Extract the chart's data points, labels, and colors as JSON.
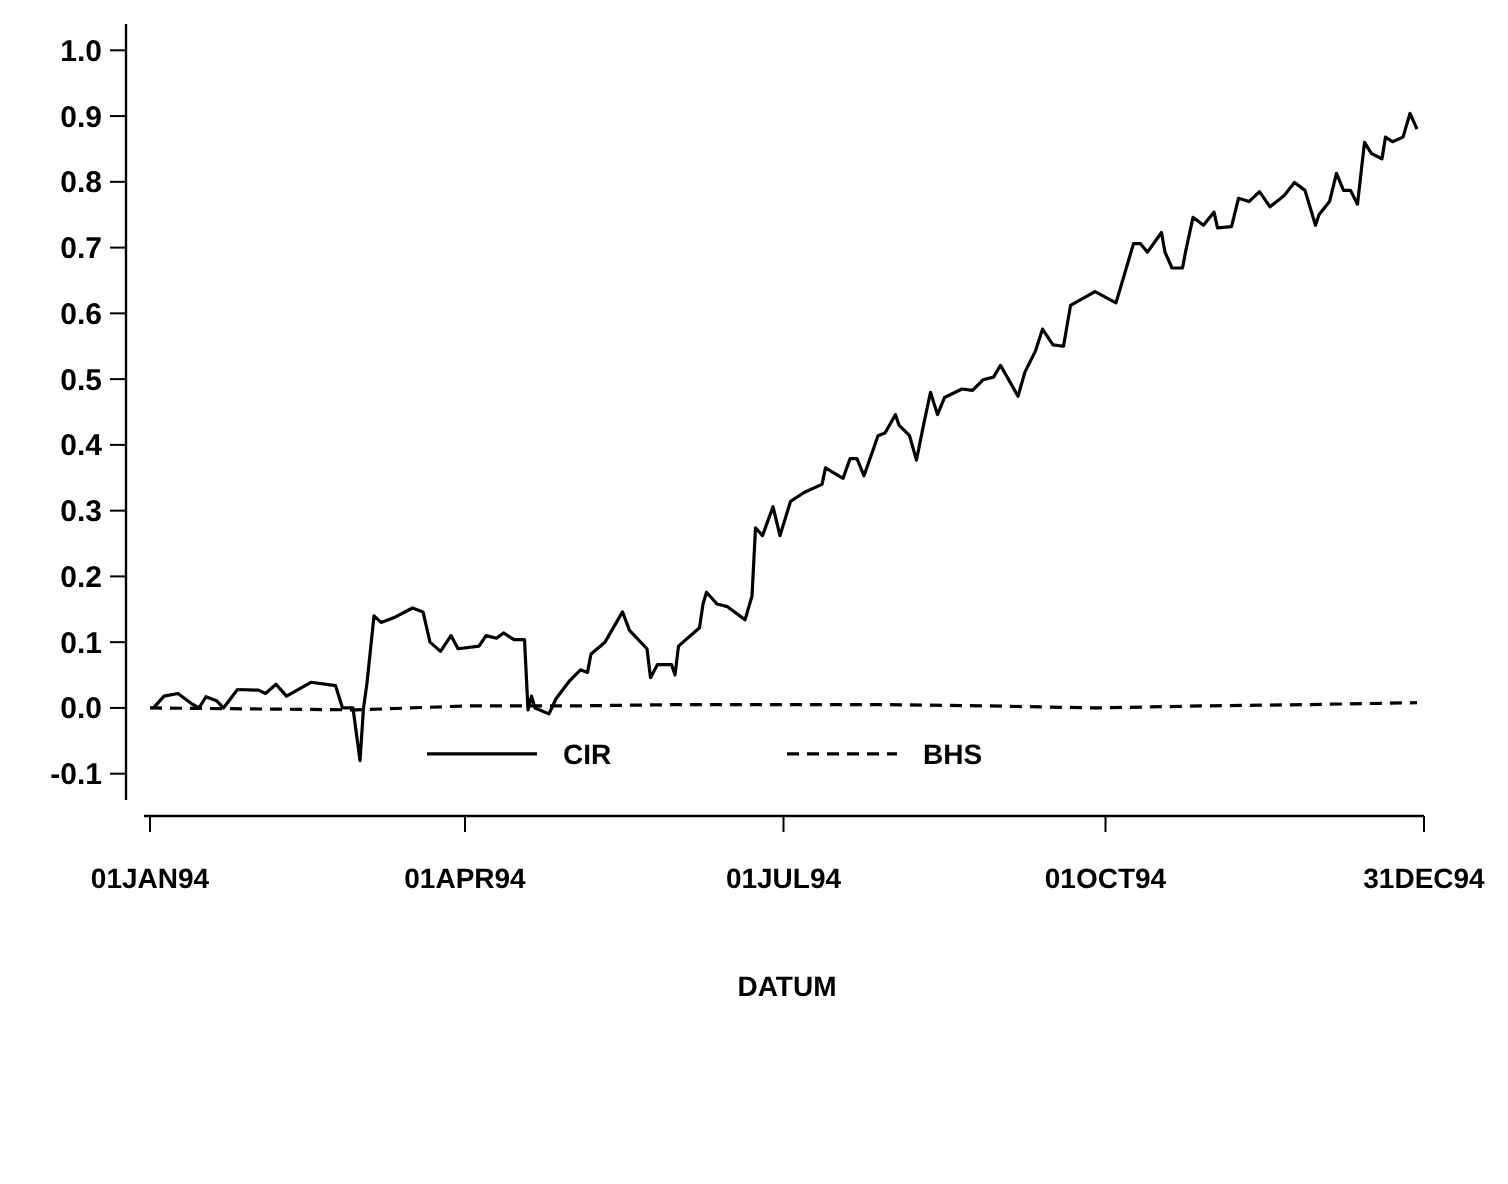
{
  "chart_data": {
    "type": "line",
    "xlabel": "DATUM",
    "xlim": [
      "1994-01-01",
      "1994-12-31"
    ],
    "xticks": [
      {
        "value": "1994-01-01",
        "label": "01JAN94"
      },
      {
        "value": "1994-04-01",
        "label": "01APR94"
      },
      {
        "value": "1994-07-01",
        "label": "01JUL94"
      },
      {
        "value": "1994-10-01",
        "label": "01OCT94"
      },
      {
        "value": "1994-12-31",
        "label": "31DEC94"
      }
    ],
    "ylim": [
      -0.14,
      1.04
    ],
    "yticks": [
      {
        "value": -0.1,
        "label": "-0.1"
      },
      {
        "value": 0,
        "label": "0.0"
      },
      {
        "value": 0.1,
        "label": "0.1"
      },
      {
        "value": 0.2,
        "label": "0.2"
      },
      {
        "value": 0.3,
        "label": "0.3"
      },
      {
        "value": 0.4,
        "label": "0.4"
      },
      {
        "value": 0.5,
        "label": "0.5"
      },
      {
        "value": 0.6,
        "label": "0.6"
      },
      {
        "value": 0.7,
        "label": "0.7"
      },
      {
        "value": 0.8,
        "label": "0.8"
      },
      {
        "value": 0.9,
        "label": "0.9"
      },
      {
        "value": 1,
        "label": "1.0"
      }
    ],
    "grid": false,
    "legend": "bottom",
    "series": [
      {
        "name": "CIR",
        "color": "#000000",
        "line_style": "solid",
        "x": [
          "1994-01-02",
          "1994-01-05",
          "1994-01-09",
          "1994-01-13",
          "1994-01-15",
          "1994-01-17",
          "1994-01-20",
          "1994-01-22",
          "1994-01-26",
          "1994-02-01",
          "1994-02-03",
          "1994-02-06",
          "1994-02-09",
          "1994-02-16",
          "1994-02-23",
          "1994-02-25",
          "1994-02-28",
          "1994-03-02",
          "1994-03-03",
          "1994-03-04",
          "1994-03-06",
          "1994-03-08",
          "1994-03-12",
          "1994-03-17",
          "1994-03-20",
          "1994-03-22",
          "1994-03-25",
          "1994-03-28",
          "1994-03-30",
          "1994-04-05",
          "1994-04-07",
          "1994-04-10",
          "1994-04-12",
          "1994-04-15",
          "1994-04-18",
          "1994-04-19",
          "1994-04-20",
          "1994-04-21",
          "1994-04-25",
          "1994-04-27",
          "1994-05-01",
          "1994-05-04",
          "1994-05-06",
          "1994-05-07",
          "1994-05-11",
          "1994-05-16",
          "1994-05-18",
          "1994-05-23",
          "1994-05-24",
          "1994-05-26",
          "1994-05-30",
          "1994-05-31",
          "1994-06-01",
          "1994-06-07",
          "1994-06-08",
          "1994-06-09",
          "1994-06-12",
          "1994-06-15",
          "1994-06-20",
          "1994-06-22",
          "1994-06-23",
          "1994-06-25",
          "1994-06-28",
          "1994-06-30",
          "1994-07-03",
          "1994-07-07",
          "1994-07-12",
          "1994-07-13",
          "1994-07-18",
          "1994-07-20",
          "1994-07-22",
          "1994-07-24",
          "1994-07-28",
          "1994-07-30",
          "1994-08-02",
          "1994-08-03",
          "1994-08-06",
          "1994-08-08",
          "1994-08-10",
          "1994-08-12",
          "1994-08-14",
          "1994-08-16",
          "1994-08-21",
          "1994-08-24",
          "1994-08-27",
          "1994-08-30",
          "1994-09-01",
          "1994-09-06",
          "1994-09-08",
          "1994-09-11",
          "1994-09-13",
          "1994-09-16",
          "1994-09-19",
          "1994-09-21",
          "1994-09-28",
          "1994-10-04",
          "1994-10-09",
          "1994-10-11",
          "1994-10-13",
          "1994-10-17",
          "1994-10-18",
          "1994-10-20",
          "1994-10-23",
          "1994-10-24",
          "1994-10-26",
          "1994-10-29",
          "1994-11-01",
          "1994-11-02",
          "1994-11-06",
          "1994-11-08",
          "1994-11-11",
          "1994-11-14",
          "1994-11-17",
          "1994-11-21",
          "1994-11-24",
          "1994-11-27",
          "1994-11-30",
          "1994-12-01",
          "1994-12-04",
          "1994-12-06",
          "1994-12-08",
          "1994-12-10",
          "1994-12-12",
          "1994-12-14",
          "1994-12-16",
          "1994-12-19",
          "1994-12-20",
          "1994-12-22",
          "1994-12-25",
          "1994-12-27",
          "1994-12-29"
        ],
        "values": [
          0,
          0.018,
          0.022,
          0.006,
          0,
          0.017,
          0.011,
          0,
          0.028,
          0.027,
          0.022,
          0.036,
          0.018,
          0.039,
          0.034,
          0,
          0,
          -0.08,
          0,
          0.038,
          0.14,
          0.13,
          0.138,
          0.152,
          0.146,
          0.1,
          0.086,
          0.11,
          0.09,
          0.094,
          0.11,
          0.106,
          0.114,
          0.104,
          0.104,
          -0.003,
          0.018,
          0,
          -0.009,
          0.014,
          0.042,
          0.058,
          0.054,
          0.082,
          0.1,
          0.146,
          0.118,
          0.09,
          0.046,
          0.066,
          0.066,
          0.05,
          0.094,
          0.122,
          0.158,
          0.176,
          0.158,
          0.154,
          0.134,
          0.17,
          0.274,
          0.262,
          0.306,
          0.262,
          0.314,
          0.328,
          0.34,
          0.365,
          0.349,
          0.379,
          0.379,
          0.353,
          0.414,
          0.418,
          0.446,
          0.43,
          0.414,
          0.377,
          0.43,
          0.48,
          0.446,
          0.472,
          0.485,
          0.483,
          0.499,
          0.503,
          0.521,
          0.474,
          0.511,
          0.543,
          0.576,
          0.552,
          0.55,
          0.612,
          0.633,
          0.616,
          0.706,
          0.706,
          0.693,
          0.723,
          0.693,
          0.669,
          0.669,
          0.697,
          0.746,
          0.734,
          0.754,
          0.73,
          0.732,
          0.775,
          0.77,
          0.785,
          0.762,
          0.779,
          0.799,
          0.787,
          0.734,
          0.75,
          0.77,
          0.813,
          0.787,
          0.787,
          0.766,
          0.86,
          0.843,
          0.835,
          0.868,
          0.861,
          0.868,
          0.904,
          0.88
        ]
      },
      {
        "name": "BHS",
        "color": "#000000",
        "line_style": "dashed",
        "x": [
          "1994-01-01",
          "1994-03-01",
          "1994-04-01",
          "1994-05-01",
          "1994-05-31",
          "1994-06-30",
          "1994-07-30",
          "1994-08-29",
          "1994-09-28",
          "1994-10-28",
          "1994-11-27",
          "1994-12-29"
        ],
        "values": [
          0,
          -0.003,
          0.003,
          0.003,
          0.005,
          0.005,
          0.005,
          0.003,
          0,
          0.003,
          0.005,
          0.008
        ]
      }
    ]
  }
}
